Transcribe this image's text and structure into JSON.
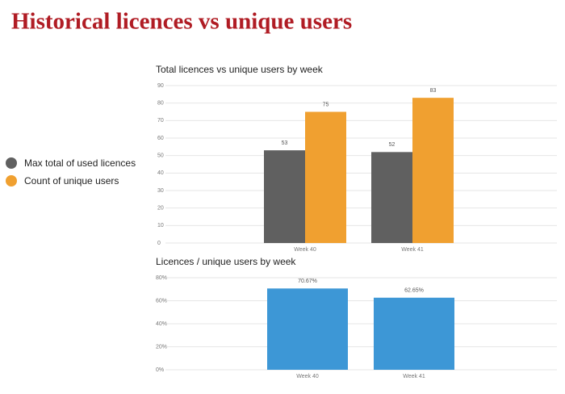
{
  "title": "Historical licences vs unique users",
  "chart_data": [
    {
      "type": "bar",
      "title": "Total licences vs unique users by week",
      "categories": [
        "Week 40",
        "Week 41"
      ],
      "series": [
        {
          "name": "Max total of used licences",
          "color": "#606060",
          "values": [
            53,
            52
          ]
        },
        {
          "name": "Count of unique users",
          "color": "#f0a030",
          "values": [
            75,
            83
          ]
        }
      ],
      "ylim": [
        0,
        90
      ],
      "yticks": [
        0,
        10,
        20,
        30,
        40,
        50,
        60,
        70,
        80,
        90
      ],
      "grid": true
    },
    {
      "type": "bar",
      "title": "Licences / unique users by week",
      "categories": [
        "Week 40",
        "Week 41"
      ],
      "values": [
        70.67,
        62.65
      ],
      "value_labels": [
        "70.67%",
        "62.65%"
      ],
      "color": "#3d97d6",
      "ylim": [
        0,
        80
      ],
      "yticks": [
        {
          "value": 0,
          "label": "0%"
        },
        {
          "value": 20,
          "label": "20%"
        },
        {
          "value": 40,
          "label": "40%"
        },
        {
          "value": 60,
          "label": "60%"
        },
        {
          "value": 80,
          "label": "80%"
        }
      ],
      "grid": true
    }
  ]
}
